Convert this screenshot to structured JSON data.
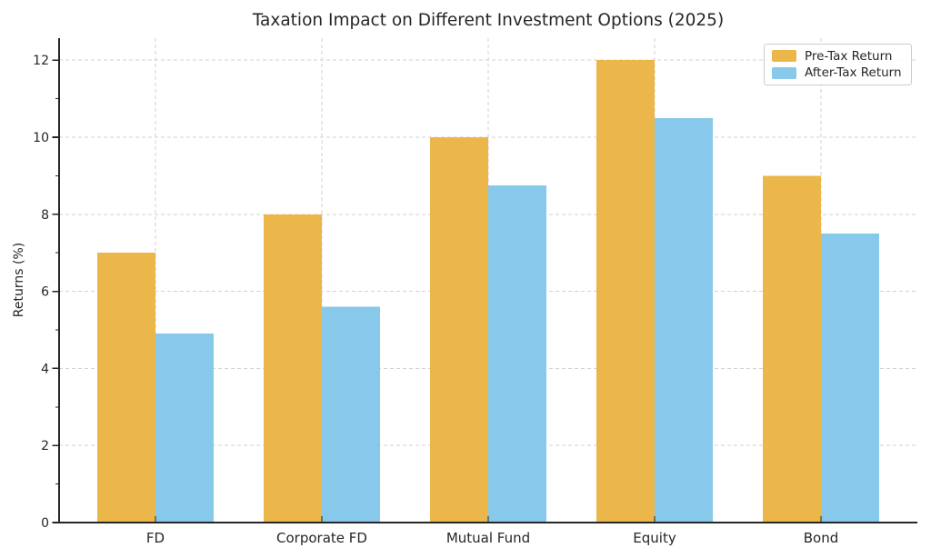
{
  "chart_data": {
    "type": "bar",
    "title": "Taxation Impact on Different Investment Options (2025)",
    "categories": [
      "FD",
      "Corporate FD",
      "Mutual Fund",
      "Equity",
      "Bond"
    ],
    "series": [
      {
        "name": "Pre-Tax Return",
        "color": "#EBB64A",
        "values": [
          7.0,
          8.0,
          10.0,
          12.0,
          9.0
        ]
      },
      {
        "name": "After-Tax Return",
        "color": "#87C8EB",
        "values": [
          4.9,
          5.6,
          8.75,
          10.5,
          7.5
        ]
      }
    ],
    "xlabel": "",
    "ylabel": "Returns (%)",
    "ylim": [
      0,
      12.57
    ],
    "yticks": [
      0,
      2,
      4,
      6,
      8,
      10,
      12
    ],
    "yticks_minor": [
      1,
      3,
      5,
      7,
      9,
      11
    ],
    "grid": {
      "axis": "both",
      "style": "dashed",
      "on": true
    },
    "legend_position": "upper right"
  },
  "colors": {
    "axis_and_text": "#262626",
    "gridline": "#d2d2d2",
    "legend_border": "#cccccc",
    "background": "#ffffff"
  }
}
